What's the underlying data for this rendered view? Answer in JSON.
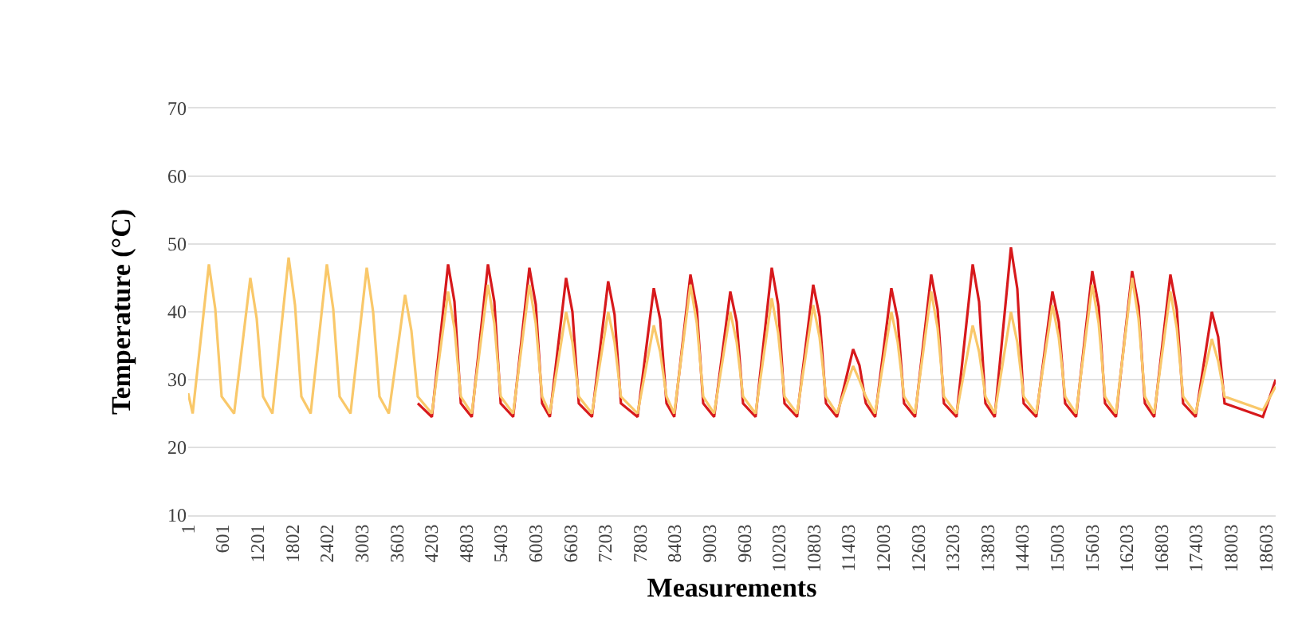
{
  "chart_data": {
    "type": "line",
    "xlabel": "Measurements",
    "ylabel": "Temperature (°C)",
    "x": [
      1,
      79,
      359,
      469,
      579,
      794,
      1074,
      1184,
      1294,
      1455,
      1735,
      1845,
      1955,
      2115,
      2395,
      2505,
      2615,
      2803,
      3083,
      3193,
      3303,
      3464,
      3744,
      3854,
      3964,
      4207,
      4487,
      4597,
      4707,
      4895,
      5175,
      5285,
      5395,
      5610,
      5890,
      6000,
      6110,
      6243,
      6523,
      6633,
      6743,
      6970,
      7250,
      7360,
      7470,
      7757,
      8037,
      8147,
      8257,
      8390,
      8670,
      8780,
      8890,
      9078,
      9358,
      9468,
      9578,
      9793,
      10073,
      10183,
      10293,
      10509,
      10789,
      10899,
      11009,
      11197,
      11477,
      11587,
      11697,
      11857,
      12137,
      12247,
      12357,
      12545,
      12825,
      12935,
      13045,
      13261,
      13541,
      13651,
      13761,
      13921,
      14201,
      14311,
      14421,
      14637,
      14917,
      15027,
      15137,
      15325,
      15605,
      15715,
      15825,
      16013,
      16293,
      16403,
      16513,
      16673,
      16953,
      17063,
      17173,
      17388,
      17668,
      17778,
      17888,
      18550,
      18770
    ],
    "series": [
      {
        "color": "#d7191c",
        "values": [
          null,
          null,
          null,
          null,
          null,
          null,
          null,
          null,
          null,
          null,
          null,
          null,
          null,
          null,
          null,
          null,
          null,
          null,
          null,
          null,
          null,
          null,
          null,
          null,
          26.5,
          24.5,
          47,
          41.5,
          26.5,
          24.5,
          47,
          41.5,
          26.5,
          24.5,
          46.5,
          41.1,
          26.5,
          24.5,
          45,
          40,
          26.5,
          24.5,
          44.5,
          39.6,
          26.5,
          24.5,
          43.5,
          38.9,
          26.5,
          24.5,
          45.5,
          40.4,
          26.5,
          24.5,
          43,
          38.5,
          26.5,
          24.5,
          46.5,
          41.1,
          26.5,
          24.5,
          44,
          39.3,
          26.5,
          24.5,
          34.5,
          32.1,
          26.5,
          24.5,
          43.5,
          38.9,
          26.5,
          24.5,
          45.5,
          40.4,
          26.5,
          24.5,
          47,
          41.5,
          26.5,
          24.5,
          49.5,
          43.4,
          26.5,
          24.5,
          43,
          38.5,
          26.5,
          24.5,
          46,
          40.8,
          26.5,
          24.5,
          46,
          40.8,
          26.5,
          24.5,
          45.5,
          40.4,
          26.5,
          24.5,
          40,
          36.3,
          26.5,
          24.5,
          30
        ]
      },
      {
        "color": "#f9c86a",
        "values": [
          28,
          25,
          47,
          40.4,
          27.5,
          25,
          45,
          39,
          27.5,
          25,
          48,
          41,
          27.5,
          25,
          47,
          40.4,
          27.5,
          25,
          46.5,
          40,
          27.5,
          25,
          42.5,
          37.2,
          27.5,
          25,
          43,
          37.6,
          27.5,
          25,
          44,
          38.3,
          27.5,
          25,
          44,
          38.3,
          27.5,
          25,
          40,
          35.5,
          27.5,
          25,
          40,
          35.5,
          27.5,
          25,
          38,
          34.1,
          27.5,
          25,
          44,
          38.3,
          27.5,
          25,
          40,
          35.5,
          27.5,
          25,
          42,
          36.9,
          27.5,
          25,
          41,
          36.2,
          27.5,
          25,
          32,
          29.9,
          27.5,
          25,
          40,
          35.5,
          27.5,
          25,
          43,
          37.6,
          27.5,
          25,
          38,
          34.1,
          27.5,
          25,
          40,
          35.5,
          27.5,
          25,
          41,
          36.2,
          27.5,
          25,
          44,
          38.3,
          27.5,
          25,
          45,
          39,
          27.5,
          25,
          43,
          37.6,
          27.5,
          25,
          36,
          32.7,
          27.5,
          25.5,
          29
        ]
      }
    ],
    "xlim": [
      1,
      18770
    ],
    "xticks": [
      1,
      601,
      1201,
      1802,
      2402,
      3003,
      3603,
      4203,
      4803,
      5403,
      6003,
      6603,
      7203,
      7803,
      8403,
      9003,
      9603,
      10203,
      10803,
      11403,
      12003,
      12603,
      13203,
      13803,
      14403,
      15003,
      15603,
      16203,
      16803,
      17403,
      18003,
      18603
    ],
    "ylim": [
      10,
      70
    ],
    "yticks": [
      10,
      20,
      30,
      40,
      50,
      60,
      70
    ],
    "grid": "y",
    "marker": "none",
    "line_style": "solid"
  }
}
